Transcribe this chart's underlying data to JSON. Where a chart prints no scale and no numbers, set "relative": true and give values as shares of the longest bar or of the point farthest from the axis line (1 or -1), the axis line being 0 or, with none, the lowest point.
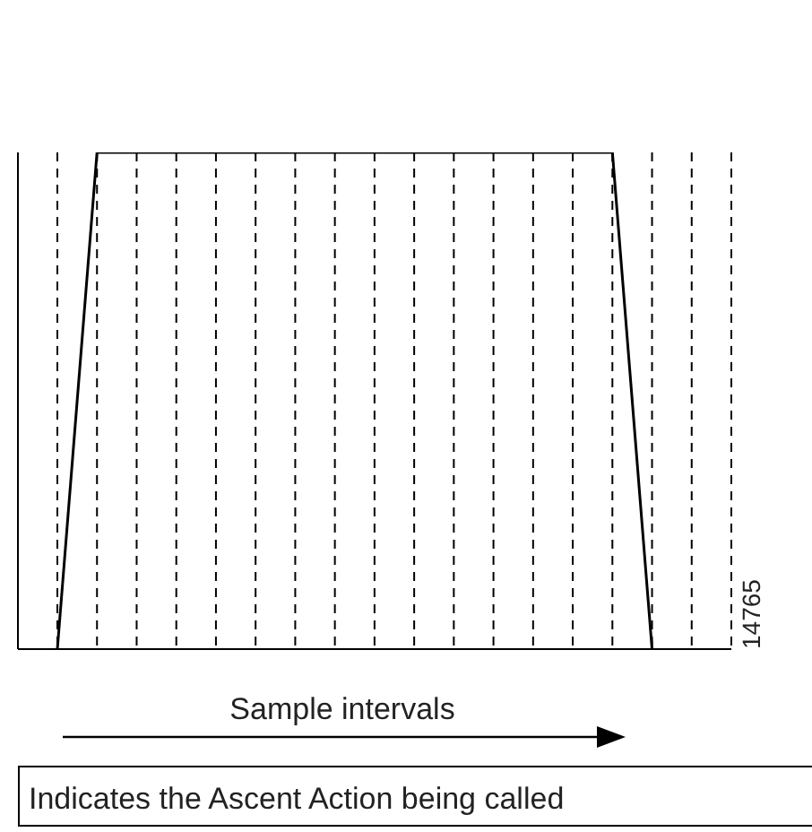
{
  "chart_data": {
    "type": "line",
    "relative": true,
    "xlabel": "Sample intervals",
    "categories": [
      null,
      null,
      null,
      null,
      null,
      null,
      null,
      null,
      null,
      null,
      null,
      null,
      null,
      null,
      null,
      null,
      null,
      null
    ],
    "series": [
      {
        "color": "#000000",
        "values": [
          0,
          1,
          1,
          1,
          1,
          1,
          1,
          1,
          1,
          1,
          1,
          1,
          1,
          1,
          1,
          0,
          null,
          null
        ]
      }
    ],
    "grid": "x",
    "marker": "none",
    "line_style": "solid",
    "annotations": [
      "Indicates the Ascent Action being called",
      "14765"
    ]
  }
}
